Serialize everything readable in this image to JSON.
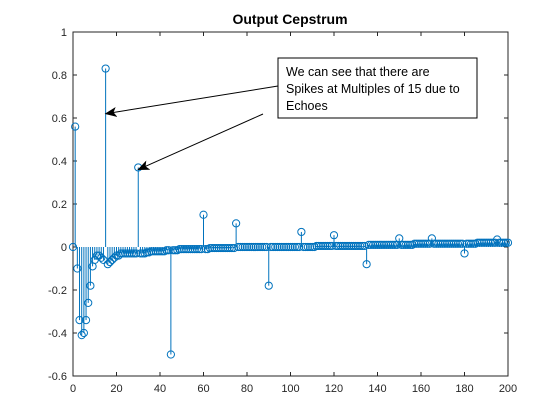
{
  "chart_data": {
    "type": "stem",
    "title": "Output Cepstrum",
    "xlabel": "",
    "ylabel": "",
    "xlim": [
      0,
      200
    ],
    "ylim": [
      -0.6,
      1
    ],
    "x_ticks": [
      0,
      20,
      40,
      60,
      80,
      100,
      120,
      140,
      160,
      180,
      200
    ],
    "y_ticks": [
      -0.6,
      -0.4,
      -0.2,
      0,
      0.2,
      0.4,
      0.6,
      0.8,
      1
    ],
    "x_tick_labels": [
      "0",
      "20",
      "40",
      "60",
      "80",
      "100",
      "120",
      "140",
      "160",
      "180",
      "200"
    ],
    "y_tick_labels": [
      "-0.6",
      "-0.4",
      "-0.2",
      "0",
      "0.2",
      "0.4",
      "0.6",
      "0.8",
      "1"
    ],
    "grid": false,
    "series": [
      {
        "color": "#0072BD",
        "marker": "circle",
        "points": [
          [
            0,
            0.0
          ],
          [
            1,
            0.56
          ],
          [
            2,
            -0.1
          ],
          [
            3,
            -0.34
          ],
          [
            4,
            -0.41
          ],
          [
            5,
            -0.4
          ],
          [
            6,
            -0.34
          ],
          [
            7,
            -0.26
          ],
          [
            8,
            -0.18
          ],
          [
            9,
            -0.09
          ],
          [
            10,
            -0.06
          ],
          [
            11,
            -0.04
          ],
          [
            12,
            -0.04
          ],
          [
            13,
            -0.05
          ],
          [
            14,
            -0.06
          ],
          [
            15,
            0.83
          ],
          [
            16,
            -0.08
          ],
          [
            17,
            -0.07
          ],
          [
            18,
            -0.06
          ],
          [
            19,
            -0.05
          ],
          [
            20,
            -0.04
          ],
          [
            21,
            -0.04
          ],
          [
            22,
            -0.03
          ],
          [
            23,
            -0.03
          ],
          [
            24,
            -0.03
          ],
          [
            25,
            -0.03
          ],
          [
            26,
            -0.03
          ],
          [
            27,
            -0.03
          ],
          [
            28,
            -0.03
          ],
          [
            29,
            -0.03
          ],
          [
            30,
            0.37
          ],
          [
            31,
            -0.03
          ],
          [
            32,
            -0.03
          ],
          [
            33,
            -0.03
          ],
          [
            34,
            -0.025
          ],
          [
            35,
            -0.025
          ],
          [
            36,
            -0.02
          ],
          [
            37,
            -0.02
          ],
          [
            38,
            -0.02
          ],
          [
            39,
            -0.02
          ],
          [
            40,
            -0.02
          ],
          [
            41,
            -0.02
          ],
          [
            42,
            -0.02
          ],
          [
            43,
            -0.015
          ],
          [
            44,
            -0.015
          ],
          [
            45,
            -0.5
          ],
          [
            46,
            -0.015
          ],
          [
            47,
            -0.015
          ],
          [
            48,
            -0.015
          ],
          [
            49,
            -0.01
          ],
          [
            50,
            -0.01
          ],
          [
            51,
            -0.01
          ],
          [
            52,
            -0.01
          ],
          [
            53,
            -0.01
          ],
          [
            54,
            -0.01
          ],
          [
            55,
            -0.01
          ],
          [
            56,
            -0.01
          ],
          [
            57,
            -0.01
          ],
          [
            58,
            -0.01
          ],
          [
            59,
            -0.01
          ],
          [
            60,
            0.15
          ],
          [
            61,
            -0.01
          ],
          [
            62,
            -0.01
          ],
          [
            63,
            -0.005
          ],
          [
            64,
            -0.005
          ],
          [
            65,
            -0.005
          ],
          [
            66,
            -0.005
          ],
          [
            67,
            -0.005
          ],
          [
            68,
            -0.005
          ],
          [
            69,
            -0.005
          ],
          [
            70,
            -0.005
          ],
          [
            71,
            -0.005
          ],
          [
            72,
            -0.005
          ],
          [
            73,
            -0.005
          ],
          [
            74,
            -0.005
          ],
          [
            75,
            0.11
          ],
          [
            76,
            0.0
          ],
          [
            77,
            0.0
          ],
          [
            78,
            0.0
          ],
          [
            79,
            0.0
          ],
          [
            80,
            0.0
          ],
          [
            81,
            0.0
          ],
          [
            82,
            0.0
          ],
          [
            83,
            0.0
          ],
          [
            84,
            0.0
          ],
          [
            85,
            0.0
          ],
          [
            86,
            0.0
          ],
          [
            87,
            0.0
          ],
          [
            88,
            0.0
          ],
          [
            89,
            0.0
          ],
          [
            90,
            -0.18
          ],
          [
            91,
            0.0
          ],
          [
            92,
            0.0
          ],
          [
            93,
            0.0
          ],
          [
            94,
            0.0
          ],
          [
            95,
            0.0
          ],
          [
            96,
            0.0
          ],
          [
            97,
            0.0
          ],
          [
            98,
            0.0
          ],
          [
            99,
            0.0
          ],
          [
            100,
            0.0
          ],
          [
            101,
            0.0
          ],
          [
            102,
            0.0
          ],
          [
            103,
            0.0
          ],
          [
            104,
            0.0
          ],
          [
            105,
            0.07
          ],
          [
            106,
            0.0
          ],
          [
            107,
            0.0
          ],
          [
            108,
            0.0
          ],
          [
            109,
            0.0
          ],
          [
            110,
            0.0
          ],
          [
            111,
            0.0
          ],
          [
            112,
            0.005
          ],
          [
            113,
            0.005
          ],
          [
            114,
            0.005
          ],
          [
            115,
            0.005
          ],
          [
            116,
            0.005
          ],
          [
            117,
            0.005
          ],
          [
            118,
            0.005
          ],
          [
            119,
            0.005
          ],
          [
            120,
            0.055
          ],
          [
            121,
            0.005
          ],
          [
            122,
            0.005
          ],
          [
            123,
            0.005
          ],
          [
            124,
            0.005
          ],
          [
            125,
            0.005
          ],
          [
            126,
            0.005
          ],
          [
            127,
            0.005
          ],
          [
            128,
            0.005
          ],
          [
            129,
            0.005
          ],
          [
            130,
            0.005
          ],
          [
            131,
            0.005
          ],
          [
            132,
            0.005
          ],
          [
            133,
            0.005
          ],
          [
            134,
            0.005
          ],
          [
            135,
            -0.08
          ],
          [
            136,
            0.01
          ],
          [
            137,
            0.01
          ],
          [
            138,
            0.01
          ],
          [
            139,
            0.01
          ],
          [
            140,
            0.01
          ],
          [
            141,
            0.01
          ],
          [
            142,
            0.01
          ],
          [
            143,
            0.01
          ],
          [
            144,
            0.01
          ],
          [
            145,
            0.01
          ],
          [
            146,
            0.01
          ],
          [
            147,
            0.01
          ],
          [
            148,
            0.01
          ],
          [
            149,
            0.01
          ],
          [
            150,
            0.04
          ],
          [
            151,
            0.01
          ],
          [
            152,
            0.01
          ],
          [
            153,
            0.01
          ],
          [
            154,
            0.01
          ],
          [
            155,
            0.01
          ],
          [
            156,
            0.01
          ],
          [
            157,
            0.015
          ],
          [
            158,
            0.015
          ],
          [
            159,
            0.015
          ],
          [
            160,
            0.015
          ],
          [
            161,
            0.015
          ],
          [
            162,
            0.015
          ],
          [
            163,
            0.015
          ],
          [
            164,
            0.015
          ],
          [
            165,
            0.04
          ],
          [
            166,
            0.015
          ],
          [
            167,
            0.015
          ],
          [
            168,
            0.015
          ],
          [
            169,
            0.015
          ],
          [
            170,
            0.015
          ],
          [
            171,
            0.015
          ],
          [
            172,
            0.015
          ],
          [
            173,
            0.015
          ],
          [
            174,
            0.015
          ],
          [
            175,
            0.015
          ],
          [
            176,
            0.015
          ],
          [
            177,
            0.015
          ],
          [
            178,
            0.015
          ],
          [
            179,
            0.015
          ],
          [
            180,
            -0.03
          ],
          [
            181,
            0.015
          ],
          [
            182,
            0.015
          ],
          [
            183,
            0.015
          ],
          [
            184,
            0.015
          ],
          [
            185,
            0.015
          ],
          [
            186,
            0.02
          ],
          [
            187,
            0.02
          ],
          [
            188,
            0.02
          ],
          [
            189,
            0.02
          ],
          [
            190,
            0.02
          ],
          [
            191,
            0.02
          ],
          [
            192,
            0.02
          ],
          [
            193,
            0.02
          ],
          [
            194,
            0.02
          ],
          [
            195,
            0.035
          ],
          [
            196,
            0.02
          ],
          [
            197,
            0.02
          ],
          [
            198,
            0.02
          ],
          [
            199,
            0.02
          ],
          [
            200,
            0.02
          ]
        ]
      }
    ],
    "annotation": {
      "lines": [
        "We can see that there are",
        "Spikes at Multiples of 15 due to",
        "Echoes"
      ],
      "arrows_to": [
        [
          15,
          0.62
        ],
        [
          30,
          0.36
        ]
      ]
    }
  }
}
